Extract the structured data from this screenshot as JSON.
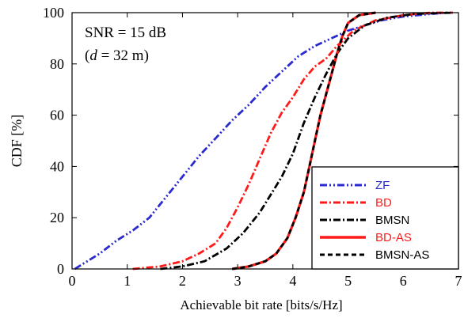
{
  "chart_data": {
    "type": "line",
    "title": "",
    "xlabel": "Achievable bit rate [bits/s/Hz]",
    "ylabel": "CDF [%]",
    "xlim": [
      0,
      7
    ],
    "ylim": [
      0,
      100
    ],
    "xticks": [
      "0",
      "1",
      "2",
      "3",
      "4",
      "5",
      "6",
      "7"
    ],
    "yticks": [
      "0",
      "20",
      "40",
      "60",
      "80",
      "100"
    ],
    "grid": false,
    "legend_position": "bottom-right",
    "annotations": [
      "SNR = 15 dB",
      "(",
      "d",
      " = 32 m)"
    ],
    "series": [
      {
        "name": "ZF",
        "color": "#2a2ad0",
        "style": "dash-dot-dot",
        "x": [
          0.05,
          0.2,
          0.5,
          0.8,
          1.1,
          1.4,
          1.7,
          2.0,
          2.3,
          2.6,
          2.9,
          3.2,
          3.5,
          3.8,
          4.1,
          4.4,
          4.7,
          5.0,
          5.3,
          5.6,
          6.0,
          6.5,
          6.8
        ],
        "y": [
          0,
          2,
          6,
          11,
          15,
          20,
          28,
          36,
          44,
          51,
          58,
          64,
          71,
          77,
          83,
          87,
          90,
          93,
          95,
          97,
          98.5,
          99.5,
          100
        ]
      },
      {
        "name": "BD",
        "color": "#ff1a1a",
        "style": "dash-dot",
        "x": [
          1.1,
          1.6,
          2.0,
          2.3,
          2.6,
          2.8,
          3.0,
          3.2,
          3.4,
          3.6,
          3.8,
          4.0,
          4.2,
          4.4,
          4.6,
          4.8,
          5.1,
          5.5,
          6.0,
          6.5,
          6.9
        ],
        "y": [
          0,
          1,
          3,
          6,
          10,
          16,
          24,
          33,
          43,
          53,
          61,
          67,
          74,
          79,
          82,
          87,
          93,
          97,
          99,
          100,
          100
        ]
      },
      {
        "name": "BMSN",
        "color": "#000000",
        "style": "dash-dot",
        "x": [
          1.6,
          2.0,
          2.4,
          2.8,
          3.1,
          3.4,
          3.6,
          3.8,
          4.0,
          4.2,
          4.4,
          4.6,
          4.8,
          5.0,
          5.3,
          5.7,
          6.2,
          6.9
        ],
        "y": [
          0,
          1,
          3,
          8,
          14,
          22,
          29,
          36,
          45,
          57,
          67,
          76,
          84,
          90,
          95,
          98,
          99.5,
          100
        ]
      },
      {
        "name": "BD-AS",
        "color": "#ff1a1a",
        "style": "solid",
        "x": [
          2.9,
          3.2,
          3.5,
          3.7,
          3.9,
          4.05,
          4.2,
          4.3,
          4.4,
          4.5,
          4.6,
          4.7,
          4.8,
          4.9,
          5.0,
          5.2,
          5.5
        ],
        "y": [
          0,
          1,
          3,
          6,
          12,
          20,
          30,
          40,
          50,
          60,
          68,
          76,
          84,
          91,
          96,
          99,
          100
        ]
      },
      {
        "name": "BMSN-AS",
        "color": "#000000",
        "style": "dash",
        "x": [
          2.9,
          3.2,
          3.5,
          3.7,
          3.9,
          4.05,
          4.2,
          4.3,
          4.4,
          4.5,
          4.6,
          4.7,
          4.8,
          4.9,
          5.0,
          5.2,
          5.5
        ],
        "y": [
          0,
          1,
          3,
          6,
          12,
          20,
          30,
          40,
          50,
          60,
          68,
          76,
          84,
          91,
          96,
          99,
          100
        ]
      }
    ]
  }
}
